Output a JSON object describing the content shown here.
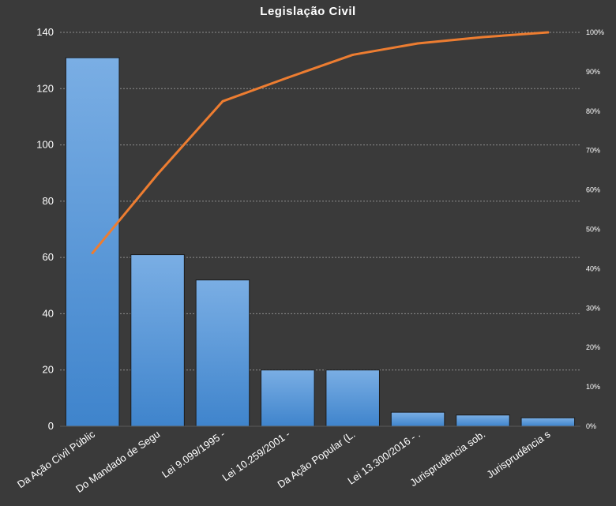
{
  "chart_data": {
    "type": "bar",
    "title": "Legislação  Civil",
    "categories": [
      "Da Ação Civil Públic",
      "Do Mandado de Segu",
      "Lei 9.099/1995 -",
      "Lei 10.259/2001 -",
      "Da Ação Popular (L.",
      "Lei 13.300/2016 -  .",
      "Jurisprudência  sob.",
      "Jurisprudência  s"
    ],
    "series": [
      {
        "type": "bar",
        "axis": "left",
        "values": [
          131,
          61,
          52,
          20,
          20,
          5,
          4,
          3
        ]
      },
      {
        "type": "line",
        "axis": "right",
        "values": [
          44,
          64,
          82.5,
          88.5,
          94.3,
          97.2,
          98.8,
          100
        ]
      }
    ],
    "ylim": [
      0,
      140
    ],
    "yticks": [
      "0",
      "20",
      "40",
      "60",
      "80",
      "100",
      "120",
      "140"
    ],
    "y2lim": [
      0,
      100
    ],
    "y2ticks": [
      "0%",
      "10%",
      "20%",
      "30%",
      "40%",
      "50%",
      "60%",
      "70%",
      "80%",
      "90%",
      "100%"
    ],
    "grid": true,
    "legend": "none",
    "colors": {
      "background": "#3a3a3a",
      "bar_top": "#7aaee4",
      "bar_bottom": "#3f84cc",
      "bar_edge": "#1c1c1c",
      "line": "#ed7d31",
      "grid": "#8c8c8c"
    }
  }
}
